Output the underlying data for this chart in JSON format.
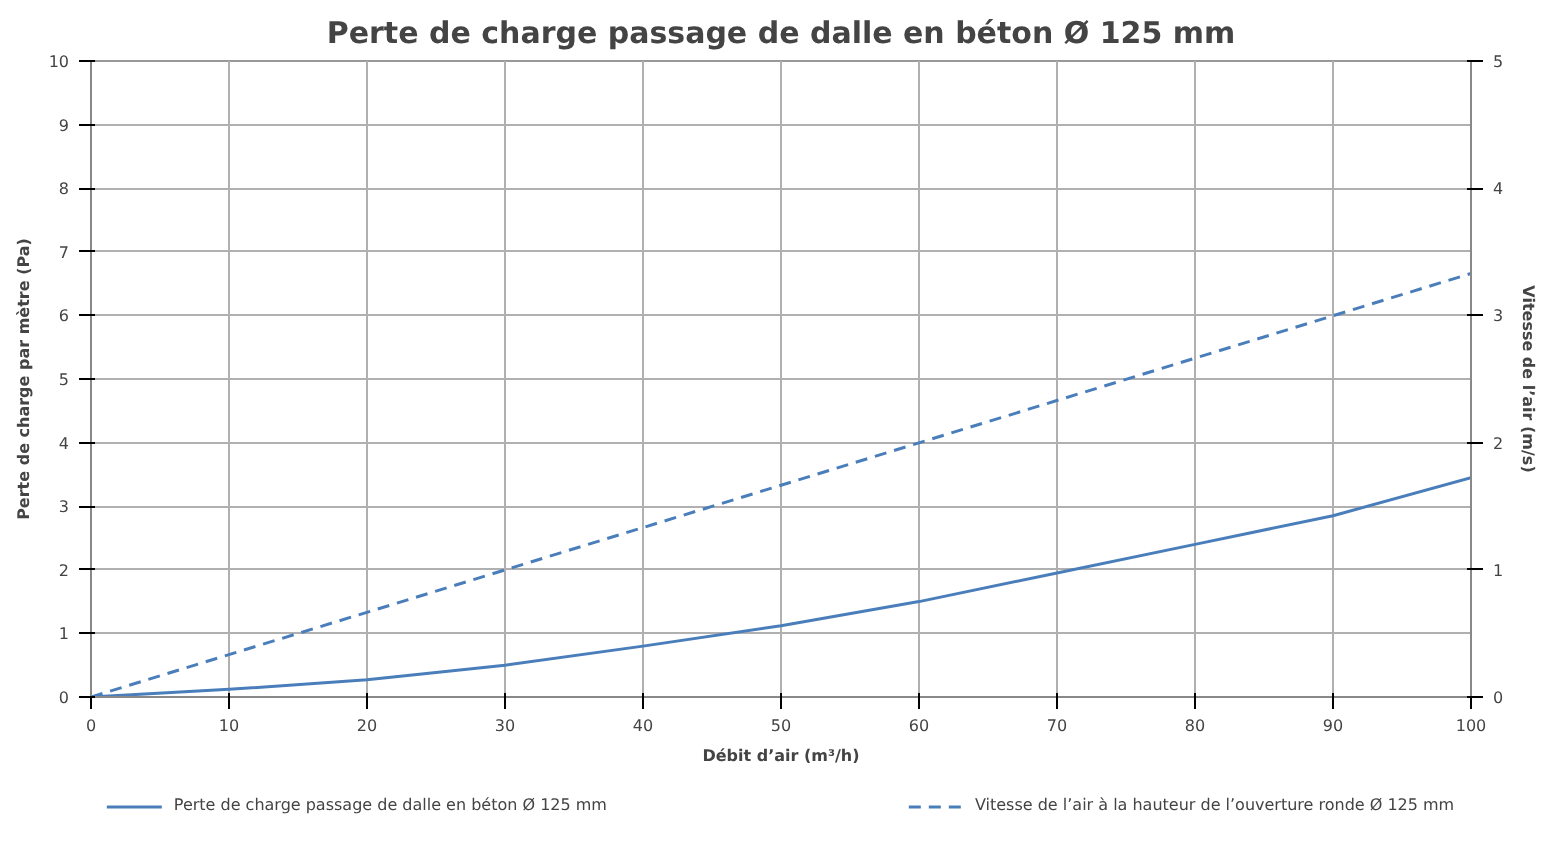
{
  "chart_data": {
    "type": "line",
    "title": "Perte de charge passage de dalle en béton Ø 125 mm",
    "xlabel": "Débit d’air (m³/h)",
    "ylabel": "Perte de charge par mètre (Pa)",
    "y2label": "Vitesse de l’air (m/s)",
    "xlim": [
      0,
      100
    ],
    "xticks": [
      0,
      10,
      20,
      30,
      40,
      50,
      60,
      70,
      80,
      90,
      100
    ],
    "ylim": [
      0,
      10
    ],
    "yticks": [
      0,
      1,
      2,
      3,
      4,
      5,
      6,
      7,
      8,
      9,
      10
    ],
    "y2lim": [
      0,
      5
    ],
    "y2ticks": [
      0,
      1,
      2,
      3,
      4,
      5
    ],
    "grid": true,
    "legend": "bottom",
    "marker": "none",
    "series": [
      {
        "name": "Perte de charge passage de dalle en béton Ø 125 mm",
        "color": "#4a7ebb",
        "line_style": "solid",
        "x": [
          0,
          10,
          20,
          30,
          40,
          50,
          60,
          70,
          80,
          90,
          100
        ],
        "values": [
          0,
          0.12,
          0.27,
          0.5,
          0.8,
          1.12,
          1.5,
          1.95,
          2.4,
          2.85,
          3.45
        ]
      },
      {
        "name": "Vitesse de l’air à la hauteur de l’ouverture ronde Ø 125 mm",
        "color": "#4a7ebb",
        "line_style": "dashed",
        "axis": "y2",
        "x": [
          0,
          100
        ],
        "values": [
          0,
          3.33
        ]
      }
    ]
  }
}
